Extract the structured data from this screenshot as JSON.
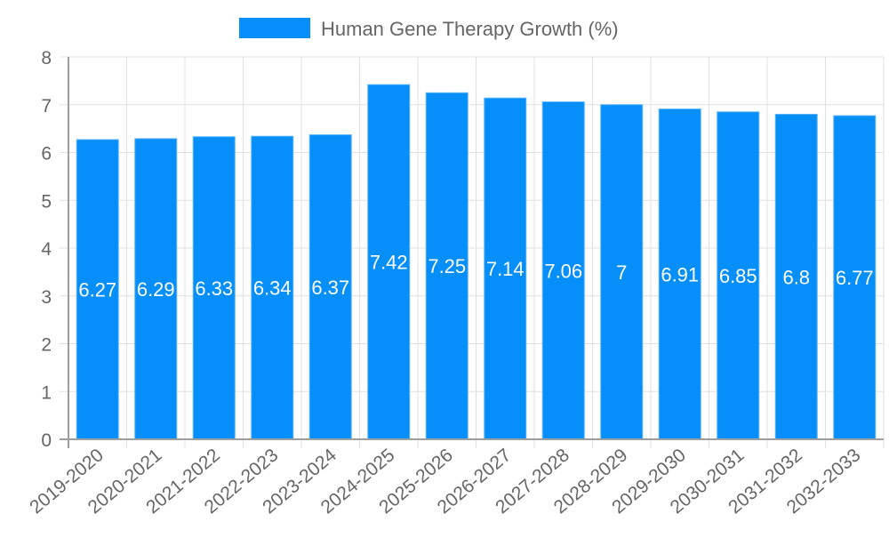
{
  "legend": {
    "label": "Human Gene Therapy Growth (%)",
    "swatch_color": "#068ef9"
  },
  "colors": {
    "bar": "#068ef9",
    "bar_border": "#5ab4fb",
    "grid": "#e0e0e0",
    "axis": "#9e9e9e",
    "tick_text": "#666666",
    "value_text": "#ffffff"
  },
  "chart_data": {
    "type": "bar",
    "title": "",
    "xlabel": "",
    "ylabel": "",
    "categories": [
      "2019-2020",
      "2020-2021",
      "2021-2022",
      "2022-2023",
      "2023-2024",
      "2024-2025",
      "2025-2026",
      "2026-2027",
      "2027-2028",
      "2028-2029",
      "2029-2030",
      "2030-2031",
      "2031-2032",
      "2032-2033"
    ],
    "series": [
      {
        "name": "Human Gene Therapy Growth (%)",
        "values": [
          6.27,
          6.29,
          6.33,
          6.34,
          6.37,
          7.42,
          7.25,
          7.14,
          7.06,
          7,
          6.91,
          6.85,
          6.8,
          6.77
        ]
      }
    ],
    "value_labels": [
      "6.27",
      "6.29",
      "6.33",
      "6.34",
      "6.37",
      "7.42",
      "7.25",
      "7.14",
      "7.06",
      "7",
      "6.91",
      "6.85",
      "6.8",
      "6.77"
    ],
    "ylim": [
      0,
      8
    ],
    "yticks": [
      "0",
      "1",
      "2",
      "3",
      "4",
      "5",
      "6",
      "7",
      "8"
    ],
    "grid": true,
    "legend_position": "top"
  }
}
